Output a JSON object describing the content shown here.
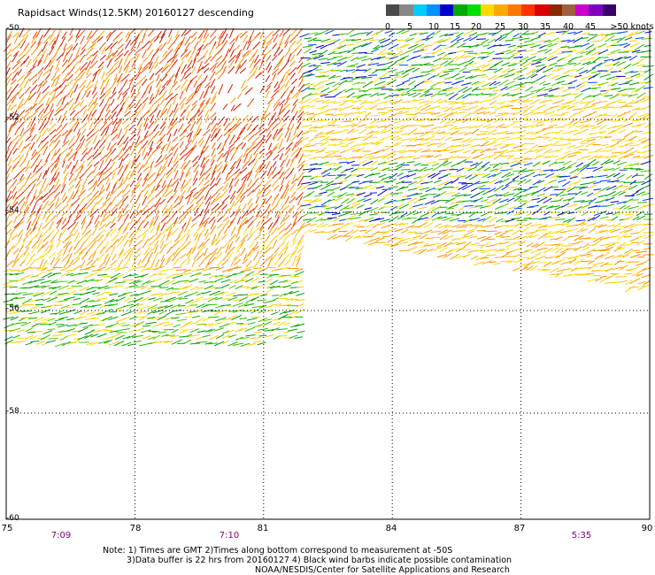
{
  "title": "Rapidsact Winds(12.5KM) 20160127 descending",
  "legend": {
    "labels": [
      "0",
      "5",
      "10",
      "15",
      "20",
      "25",
      "30",
      "35",
      "40",
      "45",
      ">50 knots"
    ],
    "colors": [
      "#4a4a4a",
      "#888888",
      "#00ccff",
      "#0090ff",
      "#0000cc",
      "#00aa00",
      "#00dd00",
      "#ffd800",
      "#ffaa00",
      "#ff7700",
      "#ff3300",
      "#dd0000",
      "#8b2a00",
      "#a06040",
      "#cc00cc",
      "#8000c0",
      "#3a006a"
    ]
  },
  "axes": {
    "lat_labels": [
      "-50",
      "-52",
      "-54",
      "-56",
      "-58",
      "-60"
    ],
    "lon_labels": [
      "75",
      "78",
      "81",
      "84",
      "87",
      "90"
    ],
    "lon_range": [
      75,
      90
    ],
    "lat_range": [
      -50,
      -60
    ]
  },
  "times": [
    "7:09",
    "7:10",
    "5:35"
  ],
  "notes": {
    "line1": "Note: 1) Times are GMT 2)Times along bottom correspond to measurement at -50S",
    "line2": "3)Data buffer is 22 hrs from 20160127 4) Black wind barbs indicate possible contamination",
    "line3": "NOAA/NESDIS/Center for Satellite Applications and Research"
  }
}
